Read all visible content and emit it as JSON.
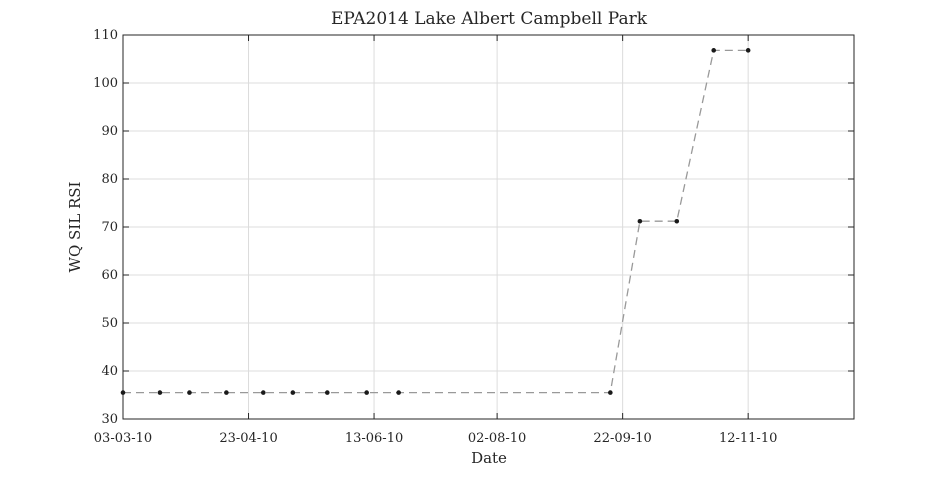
{
  "chart_data": {
    "type": "line",
    "title": "EPA2014 Lake Albert Campbell Park",
    "xlabel": "Date",
    "ylabel": "WQ SIL RSI",
    "xlim": [
      "2010-03-03",
      "2010-12-25"
    ],
    "ylim": [
      30,
      110
    ],
    "xticks": [
      {
        "date": "2010-03-03",
        "label": "03-03-10"
      },
      {
        "date": "2010-04-23",
        "label": "23-04-10"
      },
      {
        "date": "2010-06-13",
        "label": "13-06-10"
      },
      {
        "date": "2010-08-02",
        "label": "02-08-10"
      },
      {
        "date": "2010-09-22",
        "label": "22-09-10"
      },
      {
        "date": "2010-11-12",
        "label": "12-11-10"
      }
    ],
    "yticks": [
      30,
      40,
      50,
      60,
      70,
      80,
      90,
      100,
      110
    ],
    "grid": true,
    "series": [
      {
        "line_style": "dashed",
        "line_color": "#999999",
        "marker_color": "#1a1a1a",
        "points": [
          {
            "x": "2010-03-03",
            "y": 35.5
          },
          {
            "x": "2010-03-18",
            "y": 35.5
          },
          {
            "x": "2010-03-30",
            "y": 35.5
          },
          {
            "x": "2010-04-14",
            "y": 35.5
          },
          {
            "x": "2010-04-29",
            "y": 35.5
          },
          {
            "x": "2010-05-11",
            "y": 35.5
          },
          {
            "x": "2010-05-25",
            "y": 35.5
          },
          {
            "x": "2010-06-10",
            "y": 35.5
          },
          {
            "x": "2010-06-23",
            "y": 35.5
          },
          {
            "x": "2010-09-17",
            "y": 35.5
          },
          {
            "x": "2010-09-29",
            "y": 71.2
          },
          {
            "x": "2010-10-14",
            "y": 71.2
          },
          {
            "x": "2010-10-29",
            "y": 106.8
          },
          {
            "x": "2010-11-12",
            "y": 106.8
          }
        ]
      }
    ]
  }
}
